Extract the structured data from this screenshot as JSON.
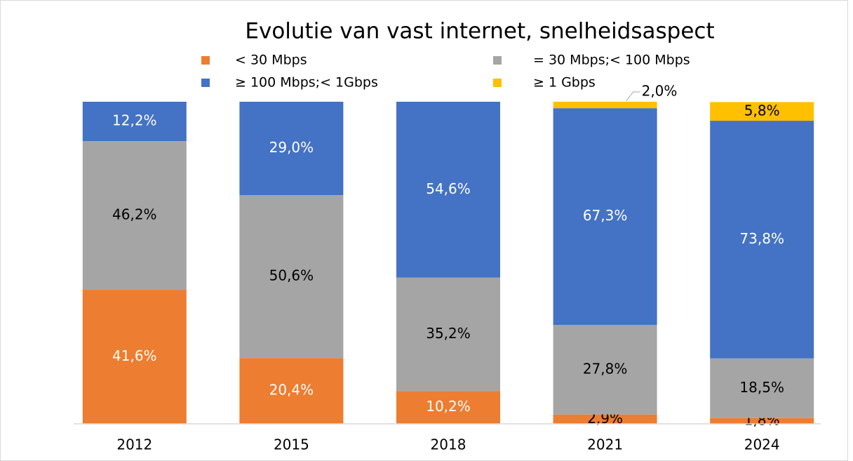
{
  "chart_data": {
    "type": "stacked_bar",
    "title": "Evolutie van vast internet, snelheidsaspect",
    "categories": [
      "2012",
      "2015",
      "2018",
      "2021",
      "2024"
    ],
    "ylim": [
      0,
      100
    ],
    "series": [
      {
        "name": "< 30 Mbps",
        "color": "#ED7D31",
        "label_color": "#ffffff",
        "values": [
          41.6,
          20.4,
          10.2,
          2.9,
          1.8
        ],
        "value_labels": [
          "41,6%",
          "20,4%",
          "10,2%",
          "2,9%",
          "1,8%"
        ]
      },
      {
        "name": "= 30 Mbps;< 100 Mbps",
        "color": "#A5A5A5",
        "label_color": "#000000",
        "values": [
          46.2,
          50.6,
          35.2,
          27.8,
          18.5
        ],
        "value_labels": [
          "46,2%",
          "50,6%",
          "35,2%",
          "27,8%",
          "18,5%"
        ]
      },
      {
        "name": "≥ 100 Mbps;< 1Gbps",
        "color": "#4472C4",
        "label_color": "#ffffff",
        "values": [
          12.2,
          29.0,
          54.6,
          67.3,
          73.8
        ],
        "value_labels": [
          "12,2%",
          "29,0%",
          "54,6%",
          "67,3%",
          "73,8%"
        ]
      },
      {
        "name": "≥ 1 Gbps",
        "color": "#FFC000",
        "label_color": "#000000",
        "values": [
          null,
          null,
          null,
          2.0,
          5.8
        ],
        "value_labels": [
          null,
          null,
          null,
          "2,0%",
          "5,8%"
        ]
      }
    ]
  }
}
